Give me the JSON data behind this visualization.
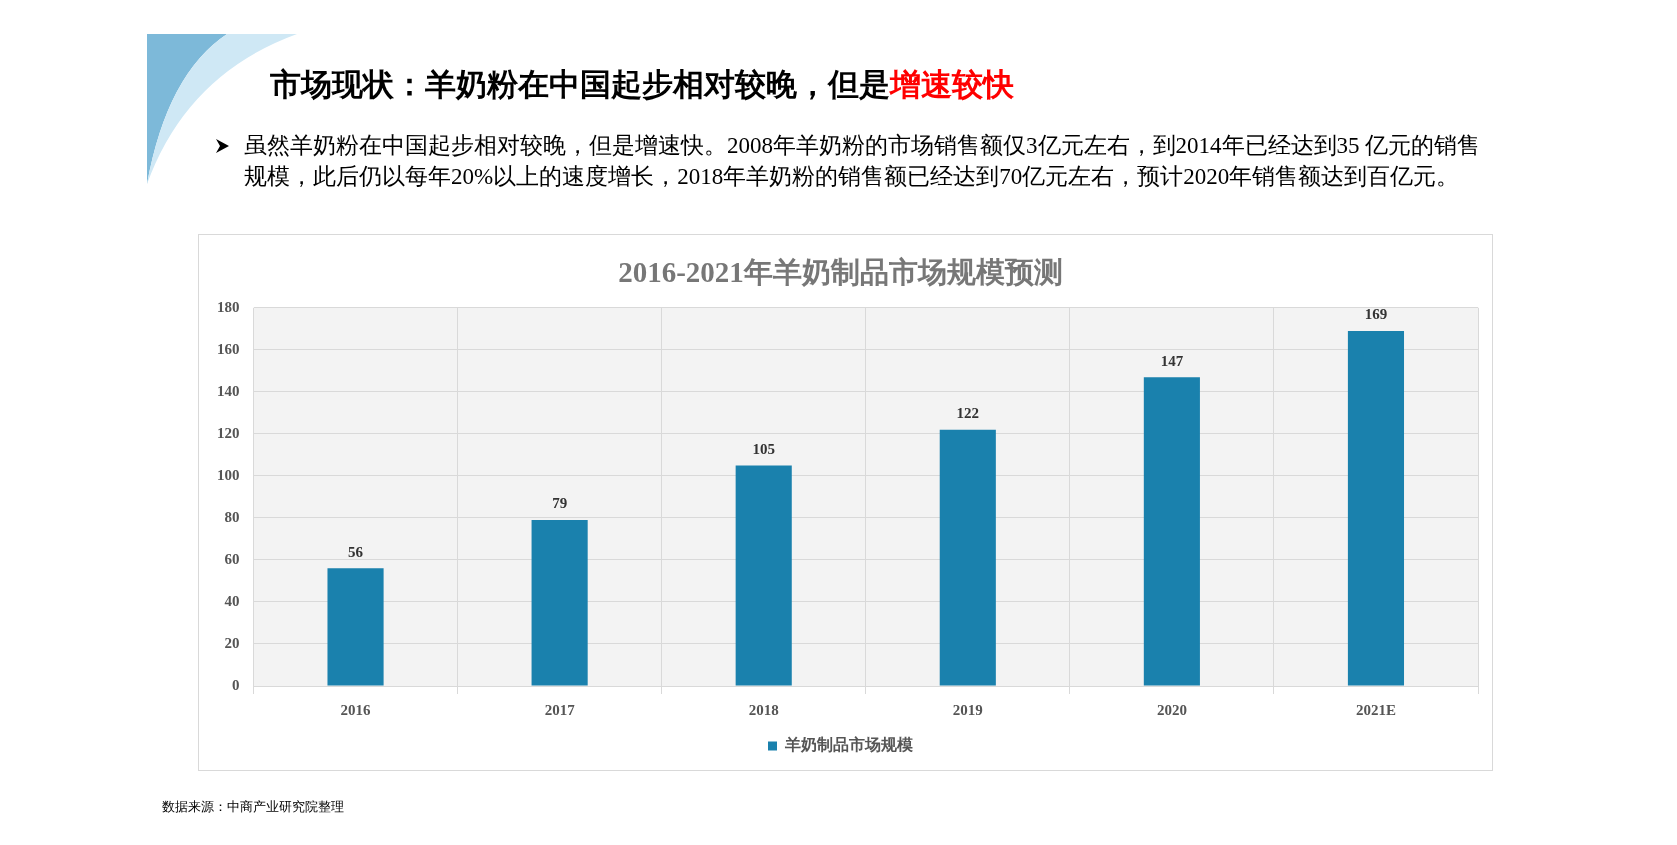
{
  "chart_data": {
    "type": "bar",
    "title": "2016-2021年羊奶制品市场规模预测",
    "categories": [
      "2016",
      "2017",
      "2018",
      "2019",
      "2020",
      "2021E"
    ],
    "series": [
      {
        "name": "羊奶制品市场规模",
        "color": "#1a81ad",
        "values": [
          56,
          79,
          105,
          122,
          147,
          169
        ]
      }
    ],
    "ylim": [
      0,
      180
    ],
    "yticks": [
      0,
      20,
      40,
      60,
      80,
      100,
      120,
      140,
      160,
      180
    ],
    "grid": true,
    "legend": "bottom",
    "data_labels": true,
    "annotations": [
      "市场现状：羊奶粉在中国起步相对较晚，但是",
      "增速较快",
      "虽然羊奶粉在中国起步相对较晚，但是增速快。2008年羊奶粉的市场销售额仅3亿元左右，到2014年已经达到35 亿元的销售规模，此后仍以每年20%以上的速度增长，2018年羊奶粉的销售额已经达到70亿元左右，预计2020年销售额达到百亿元。",
      "数据来源：中商产业研究院整理"
    ]
  }
}
